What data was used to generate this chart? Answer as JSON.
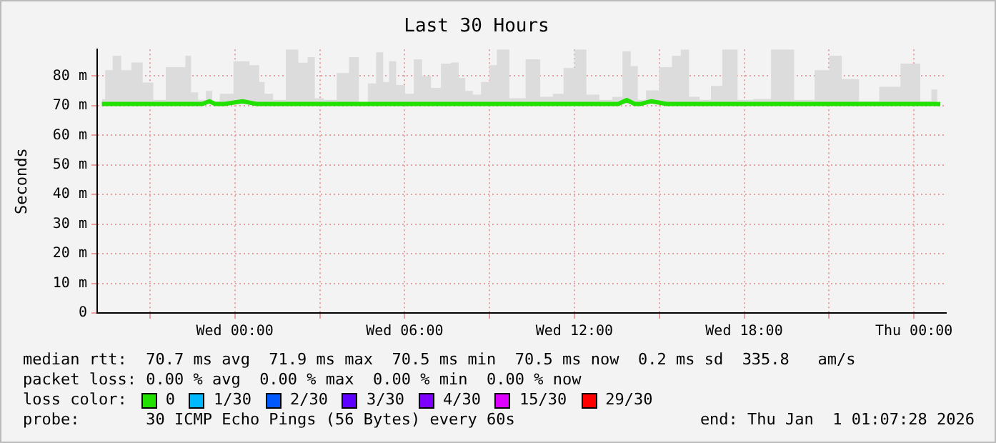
{
  "chart_data": {
    "type": "line",
    "title": "Last 30 Hours",
    "ylabel": "Seconds",
    "x": [
      "2025-12-30T19:18",
      "2025-12-30T19:32",
      "2025-12-30T19:50",
      "2025-12-30T20:08",
      "2025-12-30T20:33",
      "2025-12-30T20:56",
      "2025-12-30T21:18",
      "2025-12-30T21:49",
      "2025-12-30T22:09",
      "2025-12-30T22:21",
      "2025-12-30T22:33",
      "2025-12-30T22:51",
      "2025-12-30T23:06",
      "2025-12-30T23:18",
      "2025-12-30T23:38",
      "2025-12-31T00:16",
      "2025-12-31T00:46",
      "2025-12-31T00:57",
      "2025-12-31T01:09",
      "2025-12-31T01:33",
      "2025-12-31T02:03",
      "2025-12-31T02:26",
      "2025-12-31T02:43",
      "2025-12-31T02:56",
      "2025-12-31T03:21",
      "2025-12-31T03:51",
      "2025-12-31T04:13",
      "2025-12-31T04:33",
      "2025-12-31T04:51",
      "2025-12-31T05:08",
      "2025-12-31T05:21",
      "2025-12-31T05:33",
      "2025-12-31T05:51",
      "2025-12-31T06:11",
      "2025-12-31T06:28",
      "2025-12-31T06:46",
      "2025-12-31T07:06",
      "2025-12-31T07:28",
      "2025-12-31T07:48",
      "2025-12-31T08:01",
      "2025-12-31T08:16",
      "2025-12-31T08:33",
      "2025-12-31T08:51",
      "2025-12-31T09:08",
      "2025-12-31T09:23",
      "2025-12-31T10:01",
      "2025-12-31T10:32",
      "2025-12-31T11:03",
      "2025-12-31T11:26",
      "2025-12-31T11:48",
      "2025-12-31T12:13",
      "2025-12-31T12:38",
      "2025-12-31T13:08",
      "2025-12-31T13:33",
      "2025-12-31T13:51",
      "2025-12-31T14:08",
      "2025-12-31T14:21",
      "2025-12-31T14:43",
      "2025-12-31T15:16",
      "2025-12-31T15:38",
      "2025-12-31T15:53",
      "2025-12-31T16:13",
      "2025-12-31T16:38",
      "2025-12-31T17:01",
      "2025-12-31T17:26",
      "2025-12-31T18:06",
      "2025-12-31T18:33",
      "2025-12-31T19:21",
      "2025-12-31T20:11",
      "2025-12-31T20:48",
      "2025-12-31T21:13",
      "2025-12-31T21:41",
      "2025-12-31T22:26",
      "2025-12-31T23:07",
      "2025-12-31T23:56",
      "2026-01-01T00:31",
      "2026-01-01T00:43",
      "2026-01-01T00:56"
    ],
    "series": [
      {
        "name": "0",
        "color": "#22e000",
        "values": [
          70.6,
          70.6,
          70.6,
          70.6,
          70.6,
          70.6,
          70.6,
          70.6,
          70.6,
          70.6,
          70.6,
          70.6,
          71.5,
          70.6,
          70.6,
          71.5,
          70.6,
          70.6,
          70.6,
          70.6,
          70.6,
          70.6,
          70.6,
          70.6,
          70.6,
          70.6,
          70.6,
          70.6,
          70.6,
          70.6,
          70.6,
          70.6,
          70.6,
          70.6,
          70.6,
          70.6,
          70.6,
          70.6,
          70.6,
          70.6,
          70.6,
          70.6,
          70.6,
          70.6,
          70.6,
          70.6,
          70.6,
          70.6,
          70.6,
          70.6,
          70.6,
          70.6,
          70.6,
          70.6,
          71.9,
          70.6,
          70.6,
          71.5,
          70.6,
          70.6,
          70.6,
          70.6,
          70.6,
          70.6,
          70.6,
          70.6,
          70.6,
          70.6,
          70.6,
          70.6,
          70.6,
          70.6,
          70.6,
          70.6,
          70.6,
          70.6,
          70.6,
          70.5
        ],
        "lower": [
          70.5,
          70.5,
          70.5,
          70.5,
          70.5,
          70.5,
          70.5,
          70.5,
          70.5,
          70.5,
          70.5,
          70.5,
          70.5,
          70.5,
          70.5,
          70.5,
          70.5,
          70.5,
          70.5,
          70.5,
          70.5,
          70.5,
          70.5,
          70.5,
          70.5,
          70.5,
          70.5,
          70.5,
          70.5,
          70.5,
          70.5,
          70.5,
          70.5,
          70.5,
          70.5,
          70.5,
          70.5,
          70.5,
          70.5,
          70.5,
          70.5,
          70.5,
          70.5,
          70.5,
          70.5,
          70.5,
          70.5,
          70.5,
          70.5,
          70.5,
          70.5,
          70.5,
          70.5,
          70.5,
          70.5,
          70.5,
          70.5,
          70.5,
          70.5,
          70.5,
          70.5,
          70.5,
          70.5,
          70.5,
          70.5,
          70.5,
          70.5,
          70.5,
          70.5,
          70.5,
          70.5,
          70.5,
          70.5,
          70.5,
          70.5,
          70.5,
          70.5,
          70.5
        ],
        "upper": [
          72.2,
          82,
          86.9,
          82,
          84.6,
          77.8,
          72,
          83,
          83,
          86.9,
          74.5,
          72,
          75,
          71.5,
          74,
          85,
          83.7,
          78,
          74,
          72,
          89,
          84.5,
          86.4,
          72.5,
          72,
          81,
          86.4,
          71,
          77.5,
          88,
          78,
          85,
          77,
          74,
          85.7,
          80,
          76,
          84.2,
          84.6,
          79.4,
          75,
          73.7,
          78,
          83.7,
          89,
          72.5,
          85.7,
          73,
          74,
          82.7,
          89,
          73.7,
          72,
          73,
          88.4,
          83.4,
          72,
          75.2,
          83,
          86.9,
          89,
          73,
          72,
          76.7,
          89,
          72,
          72.3,
          89,
          72,
          82,
          86.9,
          79,
          71.5,
          76.4,
          84.2,
          71.5,
          75.5,
          71
        ]
      },
      {
        "name": "1/30",
        "color": "#00b8ff",
        "values": [
          null,
          null,
          null,
          null,
          null,
          null,
          null,
          null,
          null,
          null,
          null,
          null,
          null,
          null,
          null,
          null,
          null,
          null,
          null,
          null,
          null,
          null,
          null,
          null,
          null,
          null,
          null,
          null,
          null,
          null,
          null,
          null,
          null,
          null,
          null,
          null,
          null,
          null,
          null,
          null,
          null,
          null,
          null,
          null,
          null,
          null,
          null,
          null,
          null,
          null,
          null,
          null,
          null,
          null,
          null,
          null,
          null,
          null,
          null,
          null,
          null,
          null,
          null,
          null,
          null,
          null,
          null,
          null,
          null,
          null,
          null,
          null,
          null,
          null,
          null,
          null,
          null,
          null
        ]
      },
      {
        "name": "2/30",
        "color": "#0059ff",
        "values": [
          null,
          null,
          null,
          null,
          null,
          null,
          null,
          null,
          null,
          null,
          null,
          null,
          null,
          null,
          null,
          null,
          null,
          null,
          null,
          null,
          null,
          null,
          null,
          null,
          null,
          null,
          null,
          null,
          null,
          null,
          null,
          null,
          null,
          null,
          null,
          null,
          null,
          null,
          null,
          null,
          null,
          null,
          null,
          null,
          null,
          null,
          null,
          null,
          null,
          null,
          null,
          null,
          null,
          null,
          null,
          null,
          null,
          null,
          null,
          null,
          null,
          null,
          null,
          null,
          null,
          null,
          null,
          null,
          null,
          null,
          null,
          null,
          null,
          null,
          null,
          null,
          null,
          null
        ]
      },
      {
        "name": "3/30",
        "color": "#5e00ff",
        "values": [
          null,
          null,
          null,
          null,
          null,
          null,
          null,
          null,
          null,
          null,
          null,
          null,
          null,
          null,
          null,
          null,
          null,
          null,
          null,
          null,
          null,
          null,
          null,
          null,
          null,
          null,
          null,
          null,
          null,
          null,
          null,
          null,
          null,
          null,
          null,
          null,
          null,
          null,
          null,
          null,
          null,
          null,
          null,
          null,
          null,
          null,
          null,
          null,
          null,
          null,
          null,
          null,
          null,
          null,
          null,
          null,
          null,
          null,
          null,
          null,
          null,
          null,
          null,
          null,
          null,
          null,
          null,
          null,
          null,
          null,
          null,
          null,
          null,
          null,
          null,
          null,
          null,
          null
        ]
      },
      {
        "name": "4/30",
        "color": "#7e00ff",
        "values": [
          null,
          null,
          null,
          null,
          null,
          null,
          null,
          null,
          null,
          null,
          null,
          null,
          null,
          null,
          null,
          null,
          null,
          null,
          null,
          null,
          null,
          null,
          null,
          null,
          null,
          null,
          null,
          null,
          null,
          null,
          null,
          null,
          null,
          null,
          null,
          null,
          null,
          null,
          null,
          null,
          null,
          null,
          null,
          null,
          null,
          null,
          null,
          null,
          null,
          null,
          null,
          null,
          null,
          null,
          null,
          null,
          null,
          null,
          null,
          null,
          null,
          null,
          null,
          null,
          null,
          null,
          null,
          null,
          null,
          null,
          null,
          null,
          null,
          null,
          null,
          null,
          null,
          null
        ]
      },
      {
        "name": "15/30",
        "color": "#dd00ff",
        "values": [
          null,
          null,
          null,
          null,
          null,
          null,
          null,
          null,
          null,
          null,
          null,
          null,
          null,
          null,
          null,
          null,
          null,
          null,
          null,
          null,
          null,
          null,
          null,
          null,
          null,
          null,
          null,
          null,
          null,
          null,
          null,
          null,
          null,
          null,
          null,
          null,
          null,
          null,
          null,
          null,
          null,
          null,
          null,
          null,
          null,
          null,
          null,
          null,
          null,
          null,
          null,
          null,
          null,
          null,
          null,
          null,
          null,
          null,
          null,
          null,
          null,
          null,
          null,
          null,
          null,
          null,
          null,
          null,
          null,
          null,
          null,
          null,
          null,
          null,
          null,
          null,
          null,
          null
        ]
      },
      {
        "name": "29/30",
        "color": "#ff0000",
        "values": [
          null,
          null,
          null,
          null,
          null,
          null,
          null,
          null,
          null,
          null,
          null,
          null,
          null,
          null,
          null,
          null,
          null,
          null,
          null,
          null,
          null,
          null,
          null,
          null,
          null,
          null,
          null,
          null,
          null,
          null,
          null,
          null,
          null,
          null,
          null,
          null,
          null,
          null,
          null,
          null,
          null,
          null,
          null,
          null,
          null,
          null,
          null,
          null,
          null,
          null,
          null,
          null,
          null,
          null,
          null,
          null,
          null,
          null,
          null,
          null,
          null,
          null,
          null,
          null,
          null,
          null,
          null,
          null,
          null,
          null,
          null,
          null,
          null,
          null,
          null,
          null,
          null,
          null
        ]
      }
    ],
    "xlim": [
      "2025-12-30T19:08",
      "2026-01-01T01:08"
    ],
    "xticks": [
      {
        "value": "2025-12-30T21:00",
        "label": null
      },
      {
        "value": "2025-12-31T00:00",
        "label": "Wed 00:00"
      },
      {
        "value": "2025-12-31T03:00",
        "label": null
      },
      {
        "value": "2025-12-31T06:00",
        "label": "Wed 06:00"
      },
      {
        "value": "2025-12-31T09:00",
        "label": null
      },
      {
        "value": "2025-12-31T12:00",
        "label": "Wed 12:00"
      },
      {
        "value": "2025-12-31T15:00",
        "label": null
      },
      {
        "value": "2025-12-31T18:00",
        "label": "Wed 18:00"
      },
      {
        "value": "2025-12-31T21:00",
        "label": null
      },
      {
        "value": "2026-01-01T00:00",
        "label": "Thu 00:00"
      }
    ],
    "ylim": [
      0,
      89
    ],
    "yticks": [
      0,
      {
        "value": 10,
        "label": "10 m"
      },
      {
        "value": 20,
        "label": "20 m"
      },
      {
        "value": 30,
        "label": "30 m"
      },
      {
        "value": 40,
        "label": "40 m"
      },
      {
        "value": 50,
        "label": "50 m"
      },
      {
        "value": 60,
        "label": "60 m"
      },
      {
        "value": 70,
        "label": "70 m"
      },
      {
        "value": 80,
        "label": "80 m"
      }
    ],
    "grid": true,
    "legend": "bottom",
    "legend_title": "loss color:",
    "marker": "none",
    "line_style": "solid",
    "annotations": [
      "median rtt:  70.7 ms avg  71.9 ms max  70.5 ms min  70.5 ms now  0.2 ms sd  335.8   am/s",
      "packet loss: 0.00 % avg  0.00 % max  0.00 % min  0.00 % now",
      "probe:       30 ICMP Echo Pings (56 Bytes) every 60s",
      "end: Thu Jan  1 01:07:28 2026"
    ]
  }
}
